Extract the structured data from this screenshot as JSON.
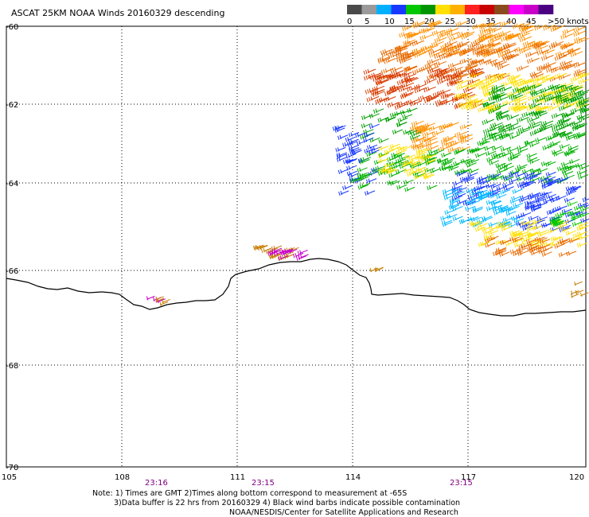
{
  "title": "ASCAT 25KM NOAA Winds 20160329 descending",
  "legend": {
    "colors": [
      "#4a4a4a",
      "#9a9a9a",
      "#00b0ff",
      "#1838ff",
      "#00c800",
      "#009400",
      "#ffe000",
      "#ffb000",
      "#ff2020",
      "#c80000",
      "#8b4a1c",
      "#ff00ff",
      "#c800c8",
      "#4b0082"
    ],
    "labels": [
      "0",
      "5",
      "10",
      "15",
      "20",
      "25",
      "30",
      "35",
      "40",
      "45",
      ">50 knots"
    ]
  },
  "map": {
    "lat_ticks": [
      "-60",
      "-62",
      "-64",
      "-66",
      "-68",
      "-70"
    ],
    "lon_ticks": [
      "105",
      "108",
      "111",
      "114",
      "117",
      "120"
    ]
  },
  "times": [
    "23:16",
    "23:15",
    "23:15"
  ],
  "notes": [
    "Note: 1) Times are GMT 2)Times along bottom correspond to measurement at -65S",
    "3)Data buffer is 22 hrs from 20160329 4) Black wind barbs indicate possible contamination",
    "NOAA/NESDIS/Center for Satellite Applications and Research"
  ]
}
